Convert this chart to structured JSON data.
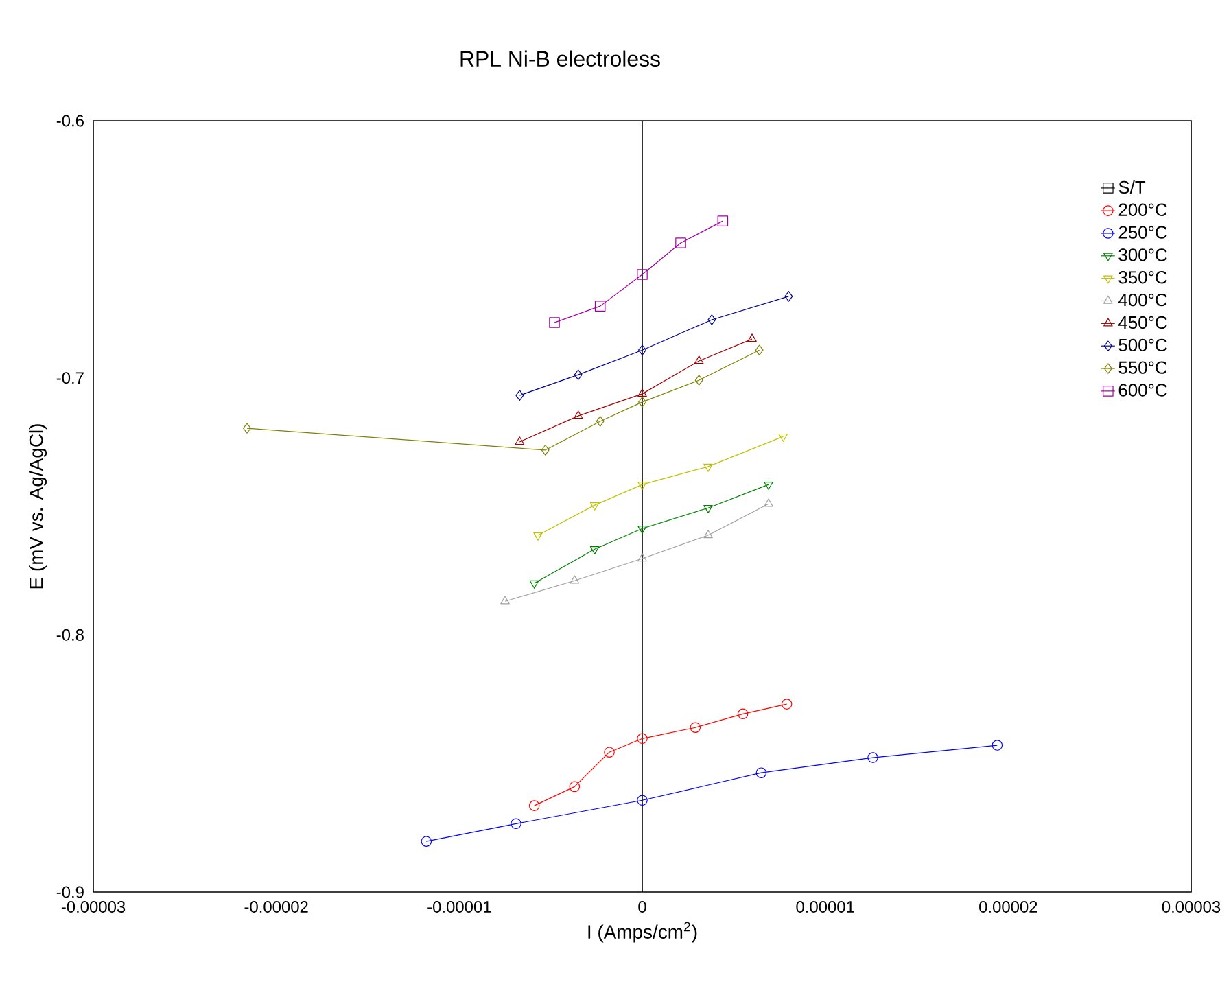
{
  "chart_data": {
    "type": "line",
    "title": "RPL Ni-B electroless",
    "xlabel": "I (Amps/cm$^{2}$)",
    "ylabel": "E (mV vs. Ag/AgCl)",
    "xlim": [
      -3e-05,
      3e-05
    ],
    "ylim": [
      -0.9,
      -0.6
    ],
    "xticks": [
      {
        "value": -3e-05,
        "label": "-0.00003"
      },
      {
        "value": -2e-05,
        "label": "-0.00002"
      },
      {
        "value": -1e-05,
        "label": "-0.00001"
      },
      0,
      {
        "value": 1e-05,
        "label": "0.00001"
      },
      {
        "value": 2e-05,
        "label": "0.00002"
      },
      {
        "value": 3e-05,
        "label": "0.00003"
      }
    ],
    "yticks": [
      -0.9,
      -0.8,
      -0.7,
      -0.6
    ],
    "legend": "top right",
    "grid": false,
    "line_style": "solid",
    "ref_lines": [
      {
        "axis": "x",
        "value": 0,
        "color": "#000000"
      }
    ],
    "series": [
      {
        "name": "S/T",
        "color": "#000000",
        "marker": "square"
      },
      {
        "name": "200°C",
        "color": "#ff0000",
        "marker": "circle",
        "x": [
          -5.9e-06,
          -3.7e-06,
          -1.8e-06,
          0,
          2.9e-06,
          5.5e-06,
          7.9e-06
        ],
        "values": [
          -0.8664,
          -0.859,
          -0.8456,
          -0.8403,
          -0.836,
          -0.8307,
          -0.8269
        ]
      },
      {
        "name": "250°C",
        "color": "#0000ff",
        "marker": "circle",
        "x": [
          -1.18e-05,
          -6.9e-06,
          0,
          6.5e-06,
          1.26e-05,
          1.94e-05
        ],
        "values": [
          -0.8803,
          -0.8734,
          -0.8643,
          -0.8536,
          -0.8477,
          -0.8429
        ]
      },
      {
        "name": "300°C",
        "color": "#008000",
        "marker": "triangle_down",
        "x": [
          -5.9e-06,
          -2.6e-06,
          0,
          3.6e-06,
          6.9e-06
        ],
        "values": [
          -0.7799,
          -0.7666,
          -0.7586,
          -0.7506,
          -0.7415
        ]
      },
      {
        "name": "350°C",
        "color": "#c0c000",
        "marker": "triangle_down",
        "x": [
          -5.7e-06,
          -2.6e-06,
          0,
          3.6e-06,
          7.7e-06
        ],
        "values": [
          -0.7612,
          -0.7495,
          -0.7415,
          -0.7345,
          -0.7228
        ]
      },
      {
        "name": "400°C",
        "color": "#a0a0a0",
        "marker": "triangle",
        "x": [
          -7.5e-06,
          -3.7e-06,
          0,
          3.6e-06,
          6.9e-06
        ],
        "values": [
          -0.7869,
          -0.7789,
          -0.7703,
          -0.7612,
          -0.749
        ]
      },
      {
        "name": "450°C",
        "color": "#a00000",
        "marker": "triangle",
        "x": [
          -6.7e-06,
          -3.5e-06,
          0,
          3.1e-06,
          6e-06
        ],
        "values": [
          -0.7249,
          -0.7148,
          -0.7062,
          -0.6934,
          -0.6849
        ]
      },
      {
        "name": "500°C",
        "color": "#000090",
        "marker": "diamond",
        "x": [
          -6.7e-06,
          -3.5e-06,
          0,
          3.8e-06,
          8e-06
        ],
        "values": [
          -0.7068,
          -0.6988,
          -0.6892,
          -0.6774,
          -0.6683
        ]
      },
      {
        "name": "550°C",
        "color": "#808000",
        "marker": "diamond",
        "x": [
          -2.16e-05,
          -5.3e-06,
          -2.3e-06,
          0,
          3.1e-06,
          6.4e-06
        ],
        "values": [
          -0.7196,
          -0.7281,
          -0.7169,
          -0.7094,
          -0.7009,
          -0.6892
        ]
      },
      {
        "name": "600°C",
        "color": "#a000a0",
        "marker": "square",
        "x": [
          -4.8e-06,
          -2.3e-06,
          0,
          2.1e-06,
          4.4e-06
        ],
        "values": [
          -0.6785,
          -0.6721,
          -0.6598,
          -0.6475,
          -0.639
        ]
      }
    ]
  }
}
